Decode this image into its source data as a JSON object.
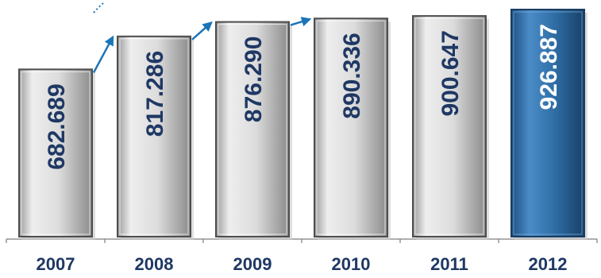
{
  "chart_data": {
    "type": "bar",
    "categories": [
      "2007",
      "2008",
      "2009",
      "2010",
      "2011",
      "2012"
    ],
    "values": [
      682.689,
      817.286,
      876.29,
      890.336,
      900.647,
      926.887
    ],
    "value_labels": [
      "682.689",
      "817.286",
      "876.290",
      "890.336",
      "900.647",
      "926.887"
    ],
    "title": "",
    "xlabel": "",
    "ylabel": "",
    "ylim": [
      0,
      926.887
    ],
    "grid": false,
    "legend": "none",
    "colors": {
      "bar_fill": "#d9d9d9",
      "bar_highlight": "#2e6da4",
      "label_dark": "#1f3864",
      "label_light": "#ffffff",
      "arrow": "#1a75b8",
      "axis": "#7f7f7f"
    },
    "highlighted_category": "2012",
    "growth_arrows": [
      {
        "from": "2007",
        "to": "2008"
      },
      {
        "from": "2008",
        "to": "2009"
      },
      {
        "from": "2009",
        "to": "2010"
      }
    ]
  }
}
